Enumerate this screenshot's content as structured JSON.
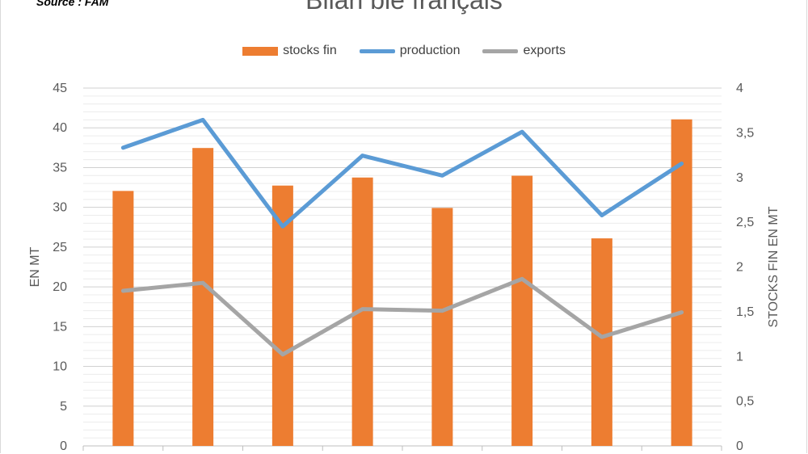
{
  "header": {
    "source": "Source : FAM",
    "title": "Bilan blé français"
  },
  "legend": [
    {
      "label": "stocks fin",
      "kind": "bar",
      "color": "#ED7D31"
    },
    {
      "label": "production",
      "kind": "line",
      "color": "#5B9BD5"
    },
    {
      "label": "exports",
      "kind": "line",
      "color": "#A5A5A5"
    }
  ],
  "chart_data": {
    "type": "bar",
    "title": "Bilan blé français",
    "ylabel": "EN MT",
    "y2label": "STOCKS FIN EN MT",
    "ylim": [
      0,
      45
    ],
    "y2lim": [
      0,
      4
    ],
    "yticks": [
      "0",
      "5",
      "10",
      "15",
      "20",
      "25",
      "30",
      "35",
      "40",
      "45"
    ],
    "y2ticks": [
      "0",
      "0,5",
      "1",
      "1,5",
      "2",
      "2,5",
      "3",
      "3,5",
      "4"
    ],
    "grid": true,
    "legend_position": "top",
    "categories": [
      "",
      "",
      "",
      "",
      "",
      "",
      "",
      ""
    ],
    "series": [
      {
        "name": "stocks fin",
        "type": "bar",
        "axis": "right",
        "color": "#ED7D31",
        "values": [
          2.85,
          3.33,
          2.91,
          3.0,
          2.66,
          3.02,
          2.32,
          3.65
        ]
      },
      {
        "name": "production",
        "type": "line",
        "axis": "left",
        "color": "#5B9BD5",
        "values": [
          37.5,
          41.0,
          27.6,
          36.5,
          34.0,
          39.5,
          29.0,
          35.5
        ]
      },
      {
        "name": "exports",
        "type": "line",
        "axis": "left",
        "color": "#A5A5A5",
        "values": [
          19.5,
          20.5,
          11.5,
          17.2,
          17.0,
          21.0,
          13.7,
          16.8
        ]
      }
    ]
  }
}
